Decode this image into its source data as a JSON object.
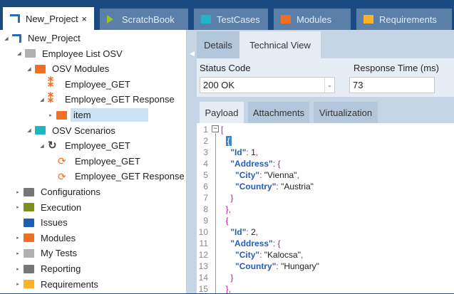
{
  "tabs": [
    {
      "label": "New_Project",
      "icon": "project-icon",
      "active": true,
      "close": "×"
    },
    {
      "label": "ScratchBook",
      "icon": "play-icon",
      "color": "#9ac42a"
    },
    {
      "label": "TestCases",
      "icon": "folder-icon",
      "color": "#1fb5c5"
    },
    {
      "label": "Modules",
      "icon": "folder-icon",
      "color": "#f26f22"
    },
    {
      "label": "Requirements",
      "icon": "folder-icon",
      "color": "#fbb323"
    }
  ],
  "tree": [
    {
      "label": "New_Project",
      "icon": "project-icon",
      "color": "#2b6cb0"
    },
    {
      "label": "Employee List OSV",
      "icon": "folder-icon",
      "color": "#b0b0b0"
    },
    {
      "label": "OSV Modules",
      "icon": "folder-icon",
      "color": "#f26f22"
    },
    {
      "label": "Employee_GET",
      "icon": "module-icon",
      "color": "#f26f22"
    },
    {
      "label": "Employee_GET Response",
      "icon": "module-icon",
      "color": "#f26f22"
    },
    {
      "label": "item",
      "icon": "module-attribute-icon",
      "color": "#f26f22",
      "selected": true
    },
    {
      "label": "OSV Scenarios",
      "icon": "folder-icon",
      "color": "#1fb5c5"
    },
    {
      "label": "Employee_GET",
      "icon": "scenario-icon",
      "color": "#444"
    },
    {
      "label": "Employee_GET",
      "icon": "message-icon",
      "color": "#f26f22"
    },
    {
      "label": "Employee_GET Response",
      "icon": "message-icon",
      "color": "#f26f22"
    },
    {
      "label": "Configurations",
      "icon": "config-folder-icon",
      "color": "#777"
    },
    {
      "label": "Execution",
      "icon": "folder-icon",
      "color": "#7d8f1c"
    },
    {
      "label": "Issues",
      "icon": "folder-icon",
      "color": "#1e5fb0"
    },
    {
      "label": "Modules",
      "icon": "folder-icon",
      "color": "#f26f22"
    },
    {
      "label": "My Tests",
      "icon": "folder-icon",
      "color": "#b0b0b0"
    },
    {
      "label": "Reporting",
      "icon": "reporting-folder-icon",
      "color": "#777"
    },
    {
      "label": "Requirements",
      "icon": "folder-icon",
      "color": "#fbb323"
    }
  ],
  "detail_tabs": {
    "details": "Details",
    "technical": "Technical View"
  },
  "form": {
    "status_label": "Status Code",
    "status_value": "200 OK",
    "time_label": "Response Time (ms)",
    "time_value": "73"
  },
  "payload_tabs": {
    "payload": "Payload",
    "attachments": "Attachments",
    "virtualization": "Virtualization"
  },
  "payload_lines": [
    "[",
    "  {",
    "    \"Id\": 1,",
    "    \"Address\": {",
    "      \"City\": \"Vienna\",",
    "      \"Country\": \"Austria\"",
    "    }",
    "  },",
    "  {",
    "    \"Id\": 2,",
    "    \"Address\": {",
    "      \"City\": \"Kalocsa\",",
    "      \"Country\": \"Hungary\"",
    "    }",
    "  },"
  ]
}
